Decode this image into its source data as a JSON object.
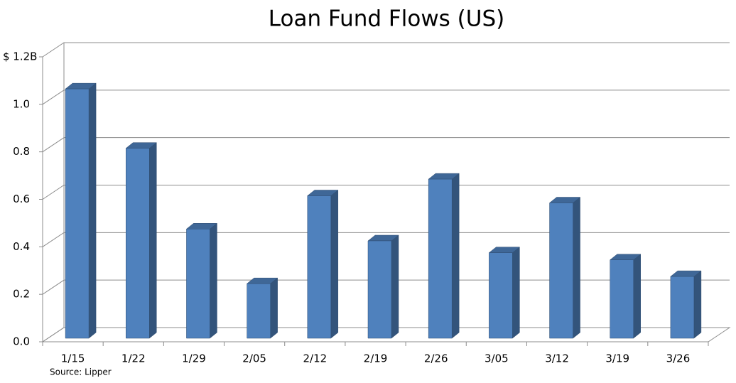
{
  "chart_data": {
    "type": "bar3d",
    "title": "Loan Fund Flows (US)",
    "source": "Source: Lipper",
    "categories": [
      "1/15",
      "1/22",
      "1/29",
      "2/05",
      "2/12",
      "2/19",
      "2/26",
      "3/05",
      "3/12",
      "3/19",
      "3/26"
    ],
    "values": [
      1.05,
      0.8,
      0.46,
      0.23,
      0.6,
      0.41,
      0.67,
      0.36,
      0.57,
      0.33,
      0.26
    ],
    "color": "#4f81bd",
    "ylim": [
      0,
      1.2
    ],
    "yticks": [
      {
        "value": 0,
        "label": "0.0"
      },
      0.2,
      0.4,
      0.6,
      0.8,
      {
        "value": 1,
        "label": "1.0"
      },
      {
        "value": 1.2,
        "label": "$ 1.2B"
      }
    ],
    "grid": true
  }
}
